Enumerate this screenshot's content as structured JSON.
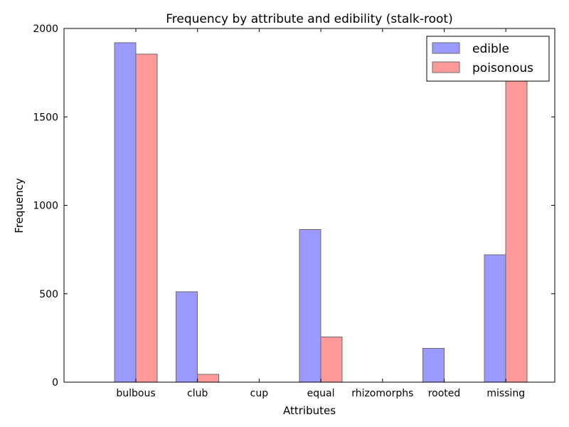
{
  "chart_data": {
    "type": "bar",
    "title": "Frequency by attribute and edibility (stalk-root)",
    "xlabel": "Attributes",
    "ylabel": "Frequency",
    "categories": [
      "bulbous",
      "club",
      "cup",
      "equal",
      "rhizomorphs",
      "rooted",
      "missing"
    ],
    "series": [
      {
        "name": "edible",
        "color": "#9999ff",
        "values": [
          1920,
          512,
          0,
          864,
          0,
          192,
          720
        ]
      },
      {
        "name": "poisonous",
        "color": "#ff9999",
        "values": [
          1856,
          44,
          0,
          256,
          0,
          0,
          1760
        ]
      }
    ],
    "ylim": [
      0,
      2000
    ],
    "yticks": [
      0,
      500,
      1000,
      1500,
      2000
    ],
    "grid": false,
    "legend": "top-right"
  }
}
